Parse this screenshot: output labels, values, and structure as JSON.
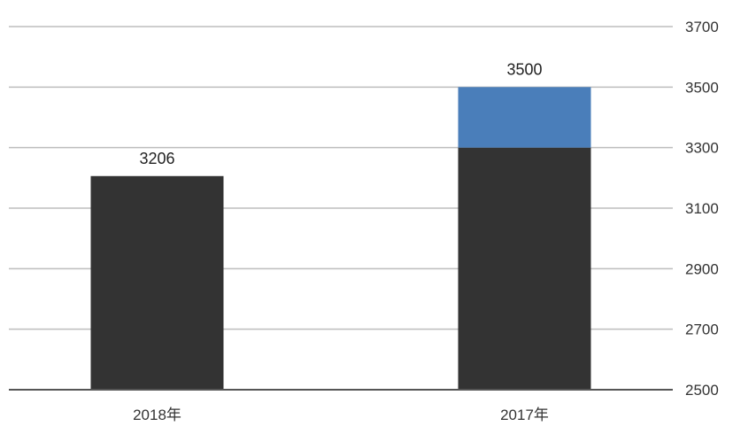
{
  "chart_data": {
    "type": "bar",
    "categories": [
      "2018年",
      "2017年"
    ],
    "series": [
      {
        "values": [
          3206,
          3300
        ]
      },
      {
        "values": [
          null,
          3500
        ]
      }
    ],
    "stacked_increment": true,
    "data_labels": [
      "3206",
      "3500"
    ],
    "y_ticks": [
      2500,
      2700,
      2900,
      3100,
      3300,
      3500,
      3700
    ],
    "ylim": [
      2500,
      3700
    ],
    "y_axis_position": "right",
    "grid": true,
    "colors": {
      "base": "#333333",
      "increment": "#4a7eba",
      "grid": "#bdbdbd"
    }
  }
}
